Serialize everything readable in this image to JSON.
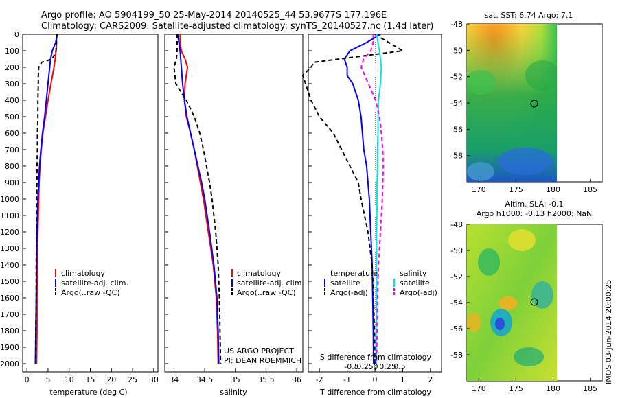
{
  "header": {
    "line1": "Argo profile: AO 5904199_50 25-May-2014 20140525_44 53.9677S 177.196E",
    "line2": "Climatology: CARS2009. Satellite-adjusted climatology: synTS_20140527.nc (1.4d later)"
  },
  "depth_ticks": [
    "0",
    "100",
    "200",
    "300",
    "400",
    "500",
    "600",
    "700",
    "800",
    "900",
    "1000",
    "1100",
    "1200",
    "1300",
    "1400",
    "1500",
    "1600",
    "1700",
    "1800",
    "1900",
    "2000"
  ],
  "colors": {
    "climatology": "#ff0000",
    "satellite": "#0000ff",
    "argo": "#000000",
    "s_satellite": "#00e8e8",
    "s_argo": "#ff00ff"
  },
  "temp_panel": {
    "xlabel": "temperature (deg C)",
    "xticks": [
      "0",
      "5",
      "10",
      "15",
      "20",
      "25",
      "30"
    ],
    "legend": [
      "climatology",
      "satellite-adj. clim.",
      "Argo(..raw -QC)"
    ]
  },
  "sal_panel": {
    "xlabel": "salinity",
    "xticks": [
      "34",
      "34.5",
      "35",
      "35.5",
      "36"
    ],
    "legend": [
      "climatology",
      "satellite-adj. clim.",
      "Argo(..raw -QC)"
    ],
    "note1": "US ARGO PROJECT",
    "note2": "PI: DEAN ROEMMICH"
  },
  "diff_panel": {
    "xlabel": "T difference from climatology",
    "xlabel_top": "S difference from climatology",
    "xticks": [
      "-2",
      "-1",
      "0",
      "1",
      "2"
    ],
    "sticks": [
      "-0.5",
      "-0.25",
      "0",
      "0.25",
      "0.5"
    ],
    "legend_t_head": "temperature",
    "legend_s_head": "salinity",
    "legend_t": [
      "satellite",
      "Argo(-adj)"
    ],
    "legend_s": [
      "satellite",
      "Argo(-adj)"
    ]
  },
  "map_top": {
    "title": "sat. SST: 6.74  Argo: 7.1",
    "yticks": [
      "-48",
      "-50",
      "-52",
      "-54",
      "-56",
      "-58"
    ],
    "xticks": [
      "170",
      "175",
      "180",
      "185"
    ]
  },
  "map_bottom": {
    "title1": "Altim. SLA: -0.1",
    "title2": "Argo h1000: -0.13 h2000: NaN",
    "yticks": [
      "-48",
      "-50",
      "-52",
      "-54",
      "-56",
      "-58"
    ],
    "xticks": [
      "170",
      "175",
      "180",
      "185"
    ]
  },
  "side_label": "IMOS 03-Jun-2014 20:00:25",
  "chart_data": [
    {
      "type": "line",
      "xlabel": "temperature (deg C)",
      "xlim": [
        -1,
        31
      ],
      "ylim": [
        0,
        2050
      ],
      "series": [
        {
          "name": "climatology",
          "depth": [
            0,
            50,
            100,
            150,
            200,
            300,
            400,
            500,
            600,
            700,
            800,
            900,
            1000,
            1200,
            1400,
            1600,
            1800,
            2000
          ],
          "values": [
            7.0,
            7.0,
            6.9,
            6.7,
            6.4,
            5.7,
            5.0,
            4.4,
            3.8,
            3.4,
            3.1,
            2.9,
            2.8,
            2.6,
            2.5,
            2.4,
            2.4,
            2.3
          ]
        },
        {
          "name": "satellite-adj. clim.",
          "depth": [
            0,
            50,
            100,
            150,
            200,
            300,
            400,
            500,
            600,
            700,
            800,
            900,
            1000,
            1200,
            1400,
            1600,
            1800,
            2000
          ],
          "values": [
            7.2,
            6.8,
            6.0,
            5.6,
            5.4,
            5.0,
            4.6,
            4.2,
            3.7,
            3.3,
            3.0,
            2.8,
            2.6,
            2.4,
            2.3,
            2.2,
            2.1,
            2.0
          ]
        },
        {
          "name": "Argo(..raw -QC)",
          "depth": [
            0,
            50,
            100,
            150,
            170,
            200,
            250,
            300,
            400,
            500,
            600,
            700,
            800,
            900,
            1000,
            1200,
            1400,
            1600,
            1800,
            2000
          ],
          "values": [
            7.0,
            7.0,
            6.9,
            6.0,
            3.5,
            2.8,
            2.7,
            2.7,
            2.6,
            2.6,
            2.5,
            2.5,
            2.4,
            2.4,
            2.3,
            2.3,
            2.2,
            2.2,
            2.1,
            2.1
          ]
        }
      ]
    },
    {
      "type": "line",
      "xlabel": "salinity",
      "xlim": [
        33.85,
        36.1
      ],
      "ylim": [
        0,
        2050
      ],
      "series": [
        {
          "name": "climatology",
          "depth": [
            0,
            50,
            100,
            150,
            200,
            300,
            400,
            500,
            600,
            700,
            800,
            900,
            1000,
            1200,
            1400,
            1600,
            1800,
            2000
          ],
          "values": [
            34.1,
            34.1,
            34.12,
            34.18,
            34.22,
            34.18,
            34.17,
            34.2,
            34.27,
            34.33,
            34.38,
            34.43,
            34.48,
            34.56,
            34.64,
            34.69,
            34.71,
            34.72
          ]
        },
        {
          "name": "satellite-adj. clim.",
          "depth": [
            0,
            50,
            100,
            150,
            200,
            300,
            400,
            500,
            600,
            700,
            800,
            900,
            1000,
            1200,
            1400,
            1600,
            1800,
            2000
          ],
          "values": [
            34.06,
            34.08,
            34.1,
            34.11,
            34.12,
            34.14,
            34.17,
            34.21,
            34.27,
            34.33,
            34.39,
            34.45,
            34.5,
            34.58,
            34.65,
            34.7,
            34.72,
            34.73
          ]
        },
        {
          "name": "Argo(..raw -QC)",
          "depth": [
            0,
            50,
            100,
            150,
            200,
            300,
            400,
            500,
            600,
            700,
            800,
            900,
            1000,
            1200,
            1400,
            1600,
            1800,
            2000
          ],
          "values": [
            34.05,
            34.05,
            34.05,
            34.04,
            34.0,
            34.03,
            34.2,
            34.33,
            34.42,
            34.48,
            34.53,
            34.58,
            34.62,
            34.68,
            34.72,
            34.74,
            34.75,
            34.76
          ]
        }
      ]
    },
    {
      "type": "line",
      "xlabel": "T difference from climatology",
      "xlim": [
        -2.4,
        2.4
      ],
      "ylim": [
        0,
        2050
      ],
      "series": [
        {
          "name": "satellite",
          "depth": [
            0,
            50,
            100,
            150,
            200,
            250,
            300,
            400,
            500,
            600,
            700,
            800,
            900,
            1000,
            1200,
            1400,
            1600,
            1800,
            2000
          ],
          "values": [
            0.2,
            -0.3,
            -0.9,
            -1.1,
            -1.0,
            -1.0,
            -0.8,
            -0.6,
            -0.5,
            -0.45,
            -0.4,
            -0.3,
            -0.25,
            -0.2,
            -0.15,
            -0.1,
            -0.08,
            -0.06,
            -0.05
          ]
        },
        {
          "name": "Argo(-adj)",
          "depth": [
            0,
            50,
            100,
            170,
            200,
            250,
            300,
            400,
            500,
            600,
            700,
            800,
            900,
            1000,
            1200,
            1400,
            1600,
            1800,
            2000
          ],
          "values": [
            0.0,
            0.5,
            1.0,
            -2.2,
            -2.3,
            -2.6,
            -2.5,
            -2.3,
            -2.0,
            -1.5,
            -1.2,
            -0.9,
            -0.6,
            -0.5,
            -0.25,
            -0.1,
            -0.05,
            -0.02,
            0.0
          ]
        },
        {
          "name": "S satellite",
          "depth": [
            0,
            50,
            100,
            150,
            200,
            300,
            400,
            500,
            600,
            700,
            800,
            900,
            1000,
            1200,
            1400,
            1600,
            1800,
            2000
          ],
          "values": [
            0.02,
            0.05,
            0.08,
            0.1,
            0.12,
            0.1,
            0.06,
            0.05,
            0.05,
            0.04,
            0.04,
            0.03,
            0.03,
            0.02,
            0.02,
            0.02,
            0.01,
            0.01
          ]
        },
        {
          "name": "S Argo(-adj)",
          "depth": [
            0,
            50,
            100,
            150,
            200,
            300,
            400,
            500,
            600,
            700,
            800,
            900,
            1000,
            1200,
            1400,
            1600,
            1800,
            2000
          ],
          "values": [
            -0.05,
            -0.05,
            -0.1,
            -0.25,
            -0.3,
            -0.15,
            0.0,
            0.08,
            0.12,
            0.15,
            0.16,
            0.15,
            0.14,
            0.1,
            0.06,
            0.04,
            0.03,
            0.02
          ]
        }
      ]
    }
  ]
}
